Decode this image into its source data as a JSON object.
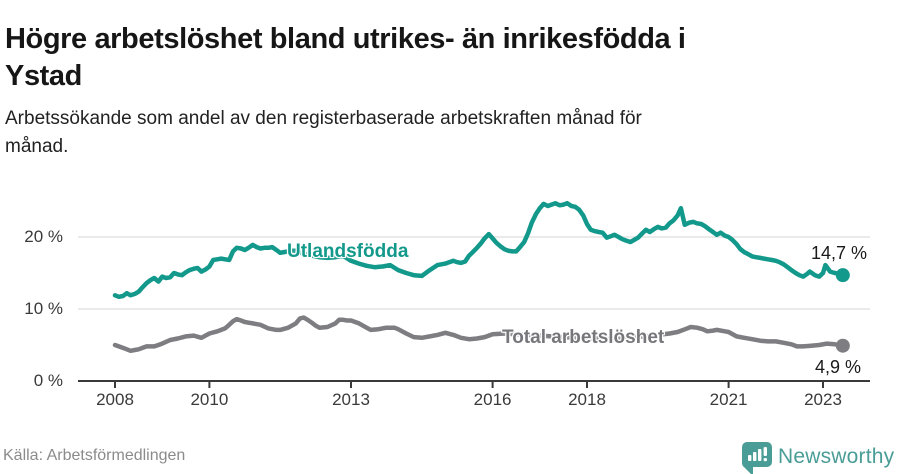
{
  "header": {
    "title_lines": [
      "Högre arbetslöshet bland utrikes- än inrikesfödda i",
      "Ystad"
    ],
    "subtitle_lines": [
      "Arbetssökande som andel av den registerbaserade arbetskraften månad för",
      "månad."
    ]
  },
  "chart_data": {
    "type": "line",
    "unit": "%",
    "grid": true,
    "legend_position": "inline-labels",
    "x_axis": {
      "ticks": [
        2008,
        2010,
        2013,
        2016,
        2018,
        2021,
        2023
      ],
      "labels": [
        "2008",
        "2010",
        "2013",
        "2016",
        "2018",
        "2021",
        "2023"
      ],
      "range": [
        2007.2,
        2023.95
      ]
    },
    "y_axis": {
      "ticks": [
        0,
        10,
        20
      ],
      "labels": [
        "0 %",
        "10 %",
        "20 %"
      ],
      "range": [
        0,
        26.5
      ]
    },
    "series": [
      {
        "name": "Utlandsfödda",
        "color": "#12998b",
        "end_value": 14.7,
        "end_label": "14,7 %",
        "points": [
          [
            2008.0,
            11.9
          ],
          [
            2008.08,
            11.7
          ],
          [
            2008.17,
            11.8
          ],
          [
            2008.25,
            12.2
          ],
          [
            2008.33,
            11.9
          ],
          [
            2008.42,
            12.1
          ],
          [
            2008.5,
            12.4
          ],
          [
            2008.58,
            13.0
          ],
          [
            2008.67,
            13.6
          ],
          [
            2008.75,
            14.0
          ],
          [
            2008.83,
            14.3
          ],
          [
            2008.92,
            13.8
          ],
          [
            2009.0,
            14.5
          ],
          [
            2009.08,
            14.3
          ],
          [
            2009.17,
            14.4
          ],
          [
            2009.25,
            15.0
          ],
          [
            2009.33,
            14.8
          ],
          [
            2009.42,
            14.7
          ],
          [
            2009.5,
            15.1
          ],
          [
            2009.58,
            15.4
          ],
          [
            2009.67,
            15.6
          ],
          [
            2009.75,
            15.7
          ],
          [
            2009.83,
            15.2
          ],
          [
            2009.92,
            15.5
          ],
          [
            2010.0,
            15.9
          ],
          [
            2010.08,
            16.8
          ],
          [
            2010.17,
            16.9
          ],
          [
            2010.25,
            17.0
          ],
          [
            2010.33,
            16.9
          ],
          [
            2010.42,
            16.8
          ],
          [
            2010.5,
            18.0
          ],
          [
            2010.58,
            18.5
          ],
          [
            2010.67,
            18.4
          ],
          [
            2010.75,
            18.2
          ],
          [
            2010.83,
            18.5
          ],
          [
            2010.92,
            18.9
          ],
          [
            2011.0,
            18.6
          ],
          [
            2011.08,
            18.4
          ],
          [
            2011.17,
            18.5
          ],
          [
            2011.25,
            18.5
          ],
          [
            2011.33,
            18.6
          ],
          [
            2011.42,
            18.2
          ],
          [
            2011.5,
            17.8
          ],
          [
            2011.58,
            17.9
          ],
          [
            2011.67,
            18.0
          ],
          [
            2011.75,
            18.1
          ],
          [
            2011.83,
            18.1
          ],
          [
            2011.92,
            17.9
          ],
          [
            2012.0,
            17.6
          ],
          [
            2012.17,
            17.4
          ],
          [
            2012.33,
            17.2
          ],
          [
            2012.5,
            17.1
          ],
          [
            2012.67,
            17.2
          ],
          [
            2012.83,
            17.4
          ],
          [
            2013.0,
            16.7
          ],
          [
            2013.17,
            16.3
          ],
          [
            2013.33,
            16.0
          ],
          [
            2013.5,
            15.8
          ],
          [
            2013.67,
            15.9
          ],
          [
            2013.83,
            16.1
          ],
          [
            2014.0,
            15.4
          ],
          [
            2014.17,
            15.0
          ],
          [
            2014.33,
            14.7
          ],
          [
            2014.5,
            14.6
          ],
          [
            2014.67,
            15.4
          ],
          [
            2014.83,
            16.1
          ],
          [
            2015.0,
            16.3
          ],
          [
            2015.08,
            16.5
          ],
          [
            2015.17,
            16.7
          ],
          [
            2015.25,
            16.5
          ],
          [
            2015.33,
            16.4
          ],
          [
            2015.42,
            16.6
          ],
          [
            2015.5,
            17.4
          ],
          [
            2015.58,
            17.9
          ],
          [
            2015.67,
            18.5
          ],
          [
            2015.75,
            19.1
          ],
          [
            2015.83,
            19.8
          ],
          [
            2015.92,
            20.4
          ],
          [
            2016.0,
            19.8
          ],
          [
            2016.08,
            19.2
          ],
          [
            2016.17,
            18.7
          ],
          [
            2016.25,
            18.3
          ],
          [
            2016.33,
            18.1
          ],
          [
            2016.42,
            18.0
          ],
          [
            2016.5,
            18.0
          ],
          [
            2016.58,
            18.6
          ],
          [
            2016.67,
            19.3
          ],
          [
            2016.75,
            20.5
          ],
          [
            2016.83,
            22.0
          ],
          [
            2016.92,
            23.2
          ],
          [
            2017.0,
            24.0
          ],
          [
            2017.08,
            24.6
          ],
          [
            2017.17,
            24.3
          ],
          [
            2017.25,
            24.5
          ],
          [
            2017.33,
            24.7
          ],
          [
            2017.42,
            24.4
          ],
          [
            2017.5,
            24.5
          ],
          [
            2017.58,
            24.7
          ],
          [
            2017.67,
            24.3
          ],
          [
            2017.75,
            24.2
          ],
          [
            2017.83,
            23.8
          ],
          [
            2017.92,
            23.0
          ],
          [
            2018.0,
            21.8
          ],
          [
            2018.08,
            21.0
          ],
          [
            2018.17,
            20.8
          ],
          [
            2018.25,
            20.7
          ],
          [
            2018.33,
            20.6
          ],
          [
            2018.42,
            19.9
          ],
          [
            2018.5,
            20.1
          ],
          [
            2018.58,
            20.3
          ],
          [
            2018.67,
            20.0
          ],
          [
            2018.75,
            19.7
          ],
          [
            2018.83,
            19.5
          ],
          [
            2018.92,
            19.3
          ],
          [
            2019.0,
            19.6
          ],
          [
            2019.08,
            19.9
          ],
          [
            2019.17,
            20.5
          ],
          [
            2019.25,
            21.0
          ],
          [
            2019.33,
            20.7
          ],
          [
            2019.42,
            21.1
          ],
          [
            2019.5,
            21.4
          ],
          [
            2019.58,
            21.2
          ],
          [
            2019.67,
            21.3
          ],
          [
            2019.75,
            21.9
          ],
          [
            2019.83,
            22.3
          ],
          [
            2019.92,
            23.0
          ],
          [
            2019.99,
            24.0
          ],
          [
            2020.07,
            21.7
          ],
          [
            2020.17,
            22.0
          ],
          [
            2020.25,
            22.1
          ],
          [
            2020.33,
            21.9
          ],
          [
            2020.42,
            21.8
          ],
          [
            2020.5,
            21.5
          ],
          [
            2020.58,
            21.1
          ],
          [
            2020.67,
            20.7
          ],
          [
            2020.75,
            20.3
          ],
          [
            2020.83,
            20.6
          ],
          [
            2020.92,
            20.2
          ],
          [
            2021.0,
            20.0
          ],
          [
            2021.08,
            19.6
          ],
          [
            2021.17,
            19.0
          ],
          [
            2021.25,
            18.3
          ],
          [
            2021.33,
            17.9
          ],
          [
            2021.42,
            17.6
          ],
          [
            2021.5,
            17.3
          ],
          [
            2021.58,
            17.2
          ],
          [
            2021.67,
            17.1
          ],
          [
            2021.75,
            17.0
          ],
          [
            2021.83,
            16.9
          ],
          [
            2021.92,
            16.8
          ],
          [
            2022.0,
            16.7
          ],
          [
            2022.08,
            16.5
          ],
          [
            2022.17,
            16.2
          ],
          [
            2022.25,
            15.8
          ],
          [
            2022.33,
            15.4
          ],
          [
            2022.42,
            15.0
          ],
          [
            2022.5,
            14.7
          ],
          [
            2022.58,
            14.5
          ],
          [
            2022.67,
            14.9
          ],
          [
            2022.72,
            15.2
          ],
          [
            2022.83,
            14.7
          ],
          [
            2022.92,
            14.5
          ],
          [
            2023.0,
            15.0
          ],
          [
            2023.05,
            16.1
          ],
          [
            2023.15,
            15.2
          ],
          [
            2023.25,
            15.0
          ],
          [
            2023.33,
            14.9
          ],
          [
            2023.42,
            14.7
          ]
        ]
      },
      {
        "name": "Total arbetslöshet",
        "color": "#7e7e82",
        "end_value": 4.9,
        "end_label": "4,9 %",
        "points": [
          [
            2008.0,
            5.0
          ],
          [
            2008.08,
            4.8
          ],
          [
            2008.17,
            4.6
          ],
          [
            2008.25,
            4.4
          ],
          [
            2008.33,
            4.2
          ],
          [
            2008.42,
            4.3
          ],
          [
            2008.5,
            4.4
          ],
          [
            2008.58,
            4.6
          ],
          [
            2008.67,
            4.8
          ],
          [
            2008.75,
            4.8
          ],
          [
            2008.83,
            4.8
          ],
          [
            2008.92,
            5.0
          ],
          [
            2009.0,
            5.2
          ],
          [
            2009.17,
            5.7
          ],
          [
            2009.33,
            5.9
          ],
          [
            2009.5,
            6.2
          ],
          [
            2009.67,
            6.3
          ],
          [
            2009.83,
            6.0
          ],
          [
            2010.0,
            6.6
          ],
          [
            2010.17,
            6.9
          ],
          [
            2010.33,
            7.3
          ],
          [
            2010.42,
            7.8
          ],
          [
            2010.5,
            8.3
          ],
          [
            2010.58,
            8.6
          ],
          [
            2010.67,
            8.4
          ],
          [
            2010.75,
            8.2
          ],
          [
            2010.83,
            8.1
          ],
          [
            2010.92,
            8.0
          ],
          [
            2011.08,
            7.8
          ],
          [
            2011.25,
            7.3
          ],
          [
            2011.42,
            7.1
          ],
          [
            2011.5,
            7.1
          ],
          [
            2011.67,
            7.4
          ],
          [
            2011.83,
            8.0
          ],
          [
            2011.92,
            8.7
          ],
          [
            2012.0,
            8.8
          ],
          [
            2012.08,
            8.5
          ],
          [
            2012.17,
            8.1
          ],
          [
            2012.25,
            7.7
          ],
          [
            2012.33,
            7.4
          ],
          [
            2012.5,
            7.5
          ],
          [
            2012.67,
            8.0
          ],
          [
            2012.75,
            8.5
          ],
          [
            2012.83,
            8.5
          ],
          [
            2012.92,
            8.4
          ],
          [
            2013.0,
            8.4
          ],
          [
            2013.17,
            8.0
          ],
          [
            2013.33,
            7.4
          ],
          [
            2013.42,
            7.1
          ],
          [
            2013.58,
            7.2
          ],
          [
            2013.75,
            7.4
          ],
          [
            2013.92,
            7.4
          ],
          [
            2014.0,
            7.2
          ],
          [
            2014.17,
            6.6
          ],
          [
            2014.33,
            6.1
          ],
          [
            2014.5,
            6.0
          ],
          [
            2014.67,
            6.2
          ],
          [
            2014.83,
            6.4
          ],
          [
            2015.0,
            6.7
          ],
          [
            2015.17,
            6.4
          ],
          [
            2015.33,
            6.0
          ],
          [
            2015.5,
            5.8
          ],
          [
            2015.67,
            5.9
          ],
          [
            2015.83,
            6.1
          ],
          [
            2016.0,
            6.5
          ],
          [
            2016.25,
            6.6
          ],
          [
            2016.5,
            6.5
          ],
          [
            2016.75,
            6.4
          ],
          [
            2017.0,
            6.3
          ],
          [
            2017.25,
            6.2
          ],
          [
            2017.5,
            6.1
          ],
          [
            2017.75,
            6.0
          ],
          [
            2018.0,
            5.9
          ],
          [
            2018.25,
            5.9
          ],
          [
            2018.5,
            5.8
          ],
          [
            2018.75,
            5.9
          ],
          [
            2019.0,
            6.1
          ],
          [
            2019.25,
            6.2
          ],
          [
            2019.5,
            6.4
          ],
          [
            2019.75,
            6.6
          ],
          [
            2019.92,
            6.8
          ],
          [
            2020.08,
            7.2
          ],
          [
            2020.2,
            7.5
          ],
          [
            2020.33,
            7.4
          ],
          [
            2020.45,
            7.2
          ],
          [
            2020.55,
            6.9
          ],
          [
            2020.67,
            7.0
          ],
          [
            2020.75,
            7.1
          ],
          [
            2020.92,
            6.9
          ],
          [
            2021.0,
            6.8
          ],
          [
            2021.17,
            6.2
          ],
          [
            2021.33,
            6.0
          ],
          [
            2021.5,
            5.8
          ],
          [
            2021.67,
            5.6
          ],
          [
            2021.83,
            5.5
          ],
          [
            2022.0,
            5.5
          ],
          [
            2022.17,
            5.3
          ],
          [
            2022.33,
            5.1
          ],
          [
            2022.45,
            4.8
          ],
          [
            2022.58,
            4.8
          ],
          [
            2022.75,
            4.9
          ],
          [
            2022.92,
            5.0
          ],
          [
            2023.08,
            5.2
          ],
          [
            2023.25,
            5.1
          ],
          [
            2023.42,
            4.9
          ]
        ]
      }
    ]
  },
  "footer": {
    "source": "Källa: Arbetsförmedlingen",
    "brand": "Newsworthy"
  },
  "colors": {
    "accent_teal": "#12998b",
    "line_gray": "#7e7e82",
    "logo_teal": "#4a9d96",
    "grid": "#e3e3e3",
    "axis": "#3a3a3a"
  }
}
